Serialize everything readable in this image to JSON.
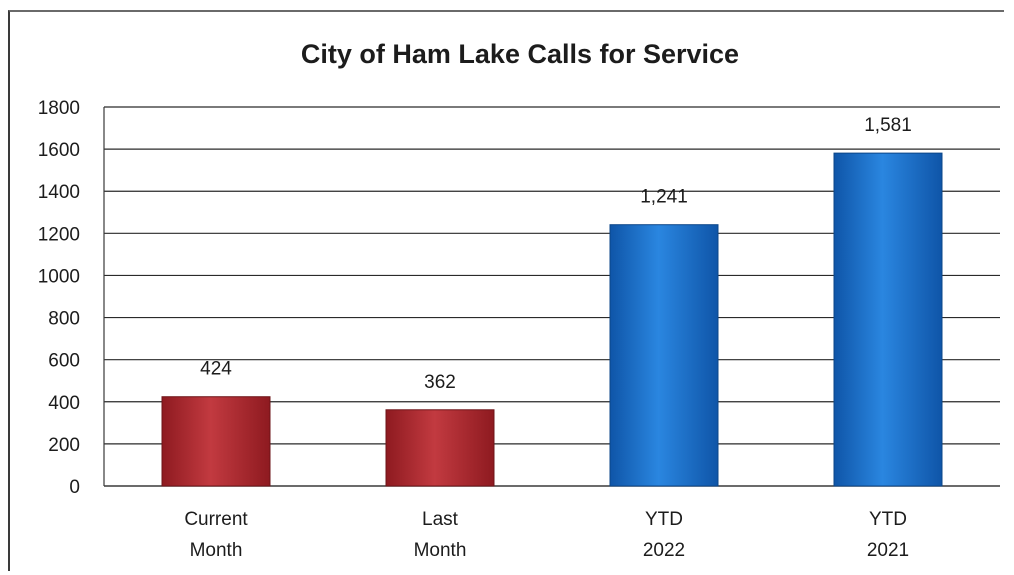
{
  "chart_data": {
    "type": "bar",
    "title": "City of Ham Lake Calls for Service",
    "categories": [
      [
        "Current",
        "Month"
      ],
      [
        "Last",
        "Month"
      ],
      [
        "YTD",
        "2022"
      ],
      [
        "YTD",
        "2021"
      ]
    ],
    "values": [
      424,
      362,
      1241,
      1581
    ],
    "data_labels": [
      "424",
      "362",
      "1,241",
      "1,581"
    ],
    "bar_colors": [
      "#b5282f",
      "#b5282f",
      "#1a6fc9",
      "#1a6fc9"
    ],
    "ylim": [
      0,
      1800
    ],
    "yticks": [
      0,
      200,
      400,
      600,
      800,
      1000,
      1200,
      1400,
      1600,
      1800
    ],
    "grid": true,
    "legend": "none"
  }
}
